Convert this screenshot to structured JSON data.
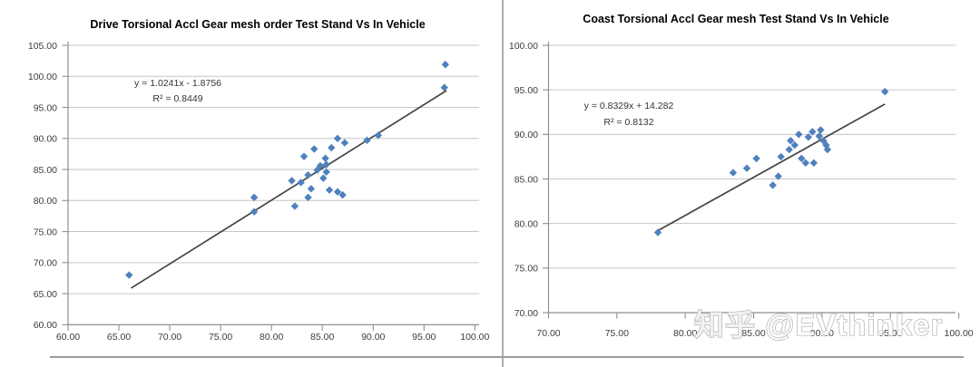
{
  "page": {
    "watermark_text": "知乎 @EVthinker",
    "background_color": "#ffffff"
  },
  "chart_data": [
    {
      "type": "scatter",
      "title": "Drive Torsional Accl Gear mesh order Test Stand Vs In Vehicle",
      "equation_label": "y = 1.0241x - 1.8756",
      "r_squared_label": "R² = 0.8449",
      "xlabel": "",
      "ylabel": "",
      "xlim": [
        60,
        100
      ],
      "ylim": [
        60,
        105
      ],
      "x_ticks": [
        60,
        65,
        70,
        75,
        80,
        85,
        90,
        95,
        100
      ],
      "y_ticks": [
        60,
        65,
        70,
        75,
        80,
        85,
        90,
        95,
        100,
        105
      ],
      "tick_decimals": 2,
      "grid": true,
      "legend": "none",
      "marker_color": "#4f81bd",
      "trend_color": "#454545",
      "grid_color": "#c6c6c6",
      "axis_color": "#8f8f8f",
      "tick_text_color": "#3d3d3d",
      "title_color": "#000000",
      "points": [
        [
          66.0,
          68.0
        ],
        [
          78.3,
          78.2
        ],
        [
          78.3,
          80.5
        ],
        [
          82.3,
          79.1
        ],
        [
          82.0,
          83.2
        ],
        [
          82.9,
          82.9
        ],
        [
          83.2,
          87.1
        ],
        [
          83.6,
          84.1
        ],
        [
          83.6,
          80.5
        ],
        [
          83.9,
          81.9
        ],
        [
          84.2,
          88.3
        ],
        [
          84.5,
          84.9
        ],
        [
          84.8,
          85.6
        ],
        [
          85.1,
          83.6
        ],
        [
          85.3,
          86.8
        ],
        [
          85.4,
          85.8
        ],
        [
          85.4,
          84.6
        ],
        [
          85.7,
          81.7
        ],
        [
          85.9,
          88.5
        ],
        [
          86.5,
          90.0
        ],
        [
          86.5,
          81.4
        ],
        [
          87.0,
          80.9
        ],
        [
          87.2,
          89.3
        ],
        [
          89.4,
          89.7
        ],
        [
          90.5,
          90.5
        ],
        [
          97.1,
          101.9
        ],
        [
          97.0,
          98.2
        ]
      ],
      "trendline": {
        "x1": 66.2,
        "y1": 65.9,
        "x2": 97.2,
        "y2": 97.7
      }
    },
    {
      "type": "scatter",
      "title": "Coast Torsional Accl Gear mesh Test Stand Vs In Vehicle",
      "equation_label": "y = 0.8329x + 14.282",
      "r_squared_label": "R² = 0.8132",
      "xlabel": "",
      "ylabel": "",
      "xlim": [
        70,
        100
      ],
      "ylim": [
        70,
        100
      ],
      "x_ticks": [
        70,
        75,
        80,
        85,
        90,
        95,
        100
      ],
      "y_ticks": [
        70,
        75,
        80,
        85,
        90,
        95,
        100
      ],
      "tick_decimals": 2,
      "grid": true,
      "legend": "none",
      "marker_color": "#4f81bd",
      "trend_color": "#454545",
      "grid_color": "#c6c6c6",
      "axis_color": "#8f8f8f",
      "tick_text_color": "#3d3d3d",
      "title_color": "#000000",
      "points": [
        [
          78.0,
          79.0
        ],
        [
          83.5,
          85.7
        ],
        [
          84.5,
          86.2
        ],
        [
          85.2,
          87.3
        ],
        [
          86.4,
          84.3
        ],
        [
          86.8,
          85.3
        ],
        [
          87.0,
          87.5
        ],
        [
          87.6,
          88.3
        ],
        [
          87.7,
          89.3
        ],
        [
          88.0,
          88.8
        ],
        [
          88.3,
          90.0
        ],
        [
          88.5,
          87.3
        ],
        [
          88.8,
          86.8
        ],
        [
          89.0,
          89.7
        ],
        [
          89.3,
          90.3
        ],
        [
          89.4,
          86.8
        ],
        [
          89.8,
          89.8
        ],
        [
          89.9,
          90.5
        ],
        [
          90.1,
          89.3
        ],
        [
          90.3,
          88.8
        ],
        [
          90.4,
          88.3
        ],
        [
          94.6,
          94.8
        ]
      ],
      "trendline": {
        "x1": 78.0,
        "y1": 79.2,
        "x2": 94.6,
        "y2": 93.4
      }
    }
  ]
}
